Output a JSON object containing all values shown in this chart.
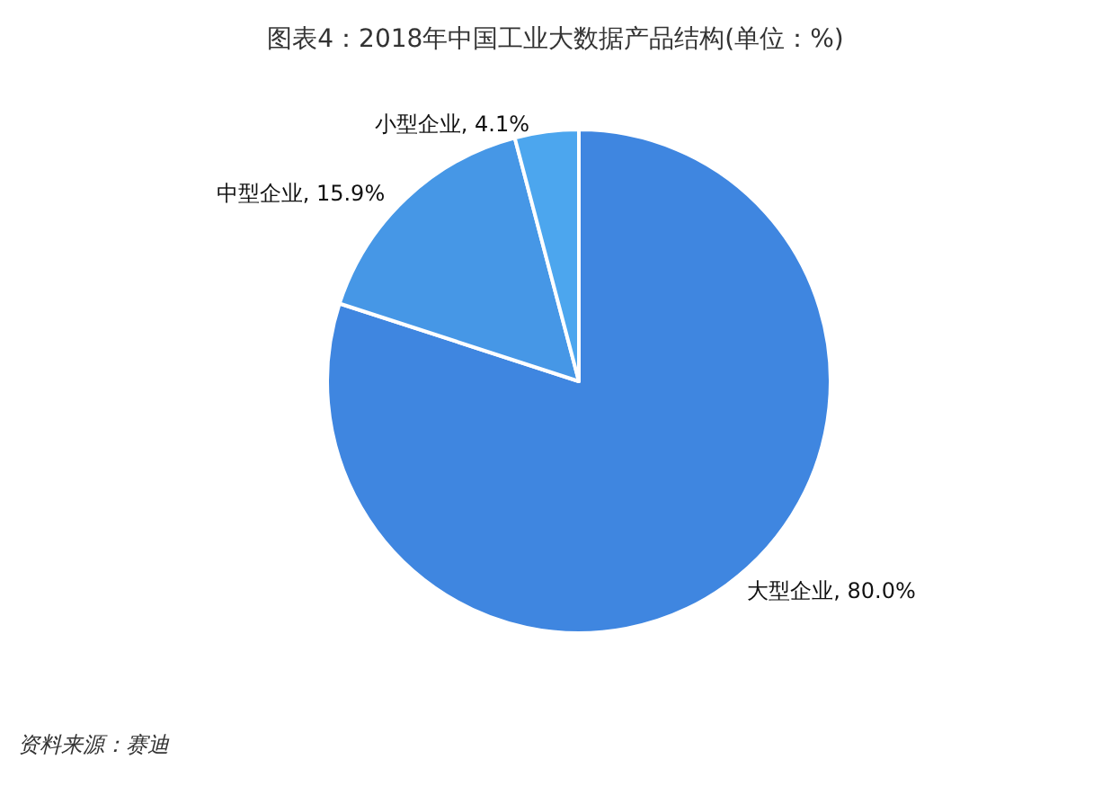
{
  "chart_data": {
    "type": "pie",
    "title": "图表4：2018年中国工业大数据产品结构(单位：%)",
    "categories": [
      "大型企业",
      "中型企业",
      "小型企业"
    ],
    "values": [
      80.0,
      15.9,
      4.1
    ],
    "colors": [
      "#3f86e0",
      "#4697e6",
      "#4ca6ee"
    ],
    "value_labels": [
      "80.0%",
      "15.9%",
      "4.1%"
    ],
    "annotations": [
      "资料来源：赛迪"
    ]
  }
}
